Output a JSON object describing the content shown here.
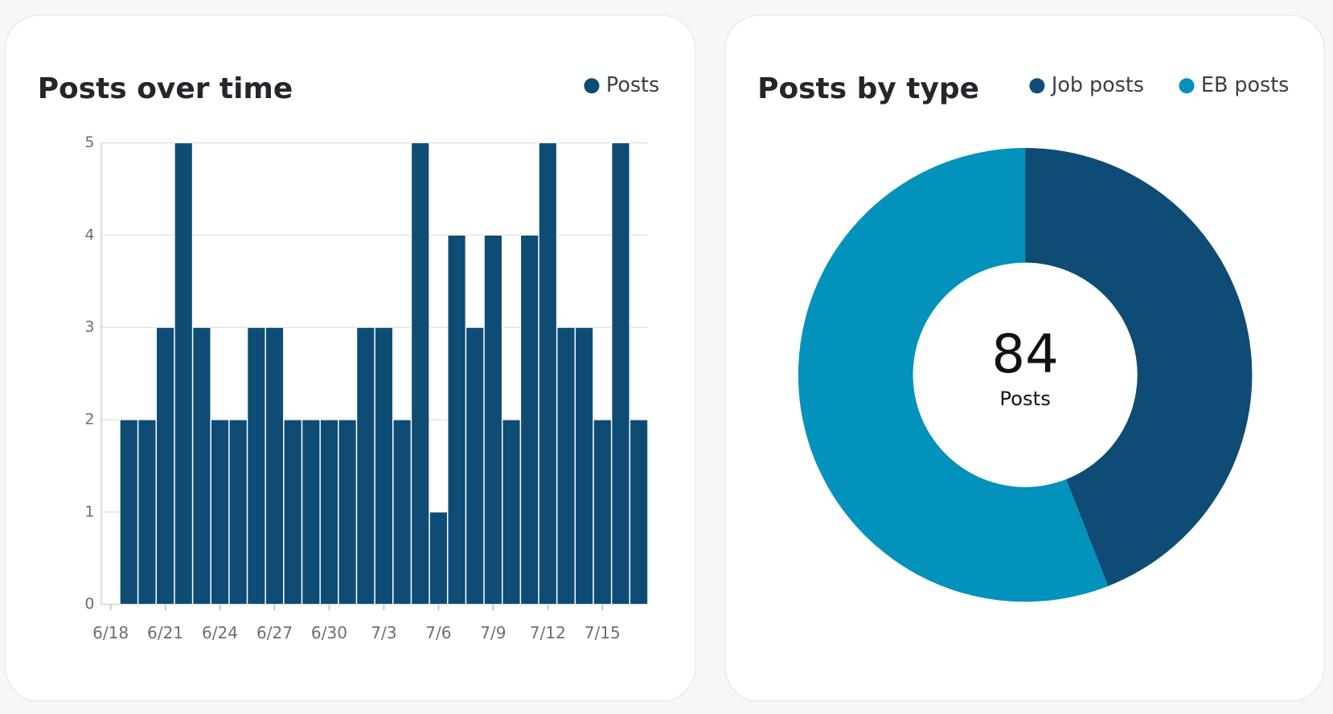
{
  "chart_data": [
    {
      "type": "bar",
      "title": "Posts over time",
      "legend": "top-right",
      "categories": [
        "6/18",
        null,
        null,
        "6/21",
        null,
        null,
        "6/24",
        null,
        null,
        "6/27",
        null,
        null,
        "6/30",
        null,
        null,
        "7/3",
        null,
        null,
        "7/6",
        null,
        null,
        "7/9",
        null,
        null,
        "7/12",
        null,
        null,
        "7/15",
        null,
        null
      ],
      "series": [
        {
          "name": "Posts",
          "color": "#0e4c75",
          "values": [
            null,
            2,
            2,
            3,
            5,
            3,
            2,
            2,
            3,
            3,
            2,
            2,
            2,
            2,
            3,
            3,
            2,
            5,
            1,
            4,
            3,
            4,
            2,
            4,
            5,
            3,
            3,
            2,
            5,
            2
          ]
        }
      ],
      "ylim": [
        0,
        5
      ],
      "yticks": [
        0,
        1,
        2,
        3,
        4,
        5
      ],
      "grid": true
    },
    {
      "type": "donut",
      "title": "Posts by type",
      "legend": "top-right",
      "categories": [
        "Job posts",
        "EB posts"
      ],
      "values": [
        37,
        47
      ],
      "colors": [
        "#0e4c75",
        "#0292bb"
      ],
      "center_value": 84,
      "center_label": "Posts"
    }
  ]
}
